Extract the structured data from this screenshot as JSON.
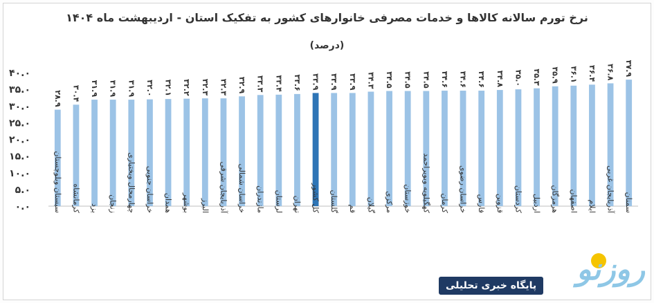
{
  "chart_data": {
    "type": "bar",
    "title": "نرخ تورم سالانه کالاها و خدمات مصرفی خانوارهای کشور به تفکیک استان - اردیبهشت ماه ۱۴۰۴",
    "subtitle": "(درصد)",
    "ylim": [
      0,
      40
    ],
    "yticks": [
      "۰.۰",
      "۵.۰",
      "۱۰.۰",
      "۱۵.۰",
      "۲۰.۰",
      "۲۵.۰",
      "۳۰.۰",
      "۳۵.۰",
      "۴۰.۰"
    ],
    "grid": false,
    "bar_color": "#9cc3e6",
    "highlight_color": "#2e75b6",
    "highlight_index": 14,
    "categories": [
      "سیستان وبلوچستان",
      "کرمانشاه",
      "یزد",
      "زنجان",
      "چهارمحال وبختیاری",
      "خراسان جنوبی",
      "همدان",
      "بوشهر",
      "البرز",
      "آذربایجان شرقی",
      "خراسان شمالی",
      "مازندران",
      "لرستان",
      "تهران",
      "کل کشور",
      "گلستان",
      "قم",
      "گیلان",
      "مرکزی",
      "خوزستان",
      "کهگیلویه وبویراحمد",
      "کرمان",
      "خراسان رضوی",
      "فارس",
      "قزوین",
      "کردستان",
      "اردبیل",
      "هرمزگان",
      "اصفهان",
      "ایلام",
      "آذربایجان غربی",
      "سمنان"
    ],
    "values": [
      28.9,
      30.4,
      31.9,
      31.9,
      31.9,
      32.0,
      32.1,
      32.2,
      32.3,
      32.3,
      32.9,
      33.3,
      33.4,
      33.6,
      33.9,
      33.9,
      33.9,
      34.3,
      34.5,
      34.5,
      34.5,
      34.6,
      34.6,
      34.6,
      34.8,
      35.0,
      35.3,
      35.9,
      36.1,
      36.4,
      36.8,
      37.9
    ],
    "value_labels": [
      "۲۸.۹",
      "۳۰.۴",
      "۳۱.۹",
      "۳۱.۹",
      "۳۱.۹",
      "۳۲.۰",
      "۳۲.۱",
      "۳۲.۲",
      "۳۲.۳",
      "۳۲.۳",
      "۳۲.۹",
      "۳۳.۳",
      "۳۳.۴",
      "۳۳.۶",
      "۳۳.۹",
      "۳۳.۹",
      "۳۳.۹",
      "۳۴.۳",
      "۳۴.۵",
      "۳۴.۵",
      "۳۴.۵",
      "۳۴.۶",
      "۳۴.۶",
      "۳۴.۶",
      "۳۴.۸",
      "۳۵.۰",
      "۳۵.۳",
      "۳۵.۹",
      "۳۶.۱",
      "۳۶.۴",
      "۳۶.۸",
      "۳۷.۹"
    ]
  },
  "logo": {
    "word": "روزنو",
    "tagline": "پایگاه خبری تحلیلی",
    "dot_color": "#f5c400",
    "word_color": "#8ec7e6",
    "tag_bg": "#1f3a63"
  }
}
